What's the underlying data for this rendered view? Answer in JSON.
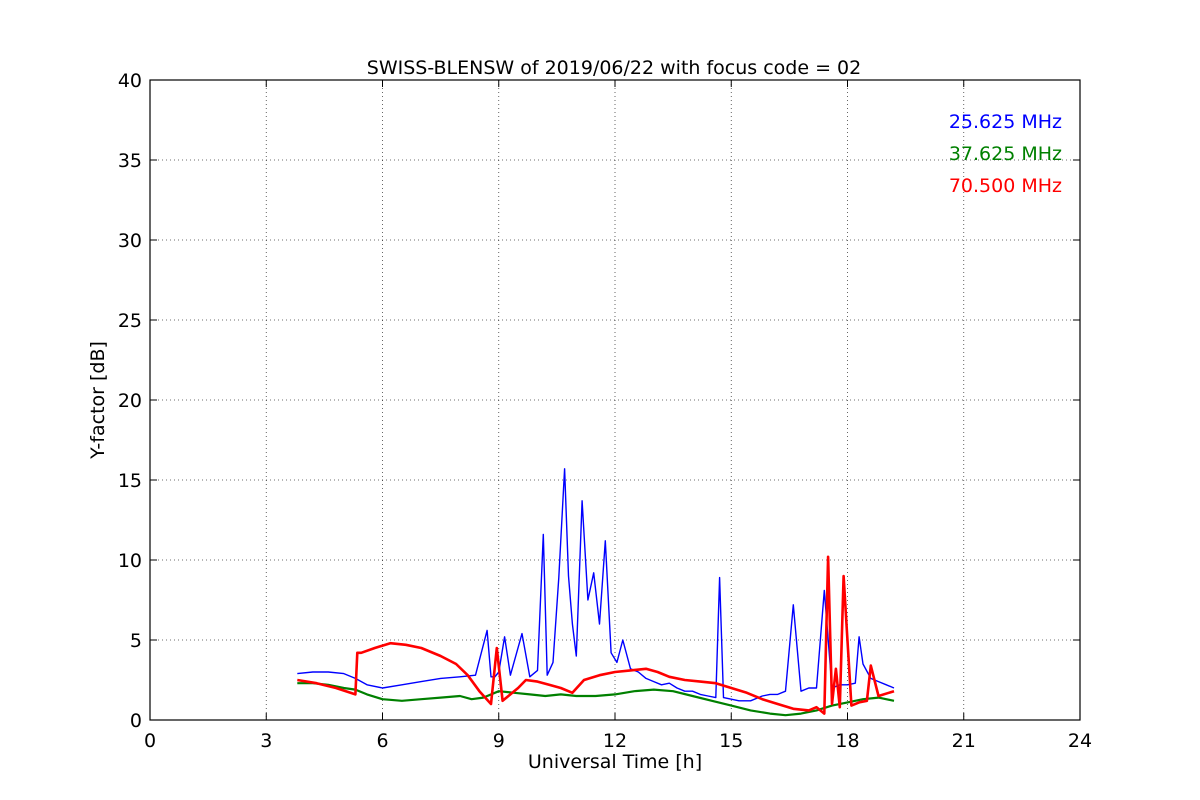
{
  "chart_data": {
    "type": "line",
    "title": "SWISS-BLENSW of 2019/06/22 with focus code = 02",
    "xlabel": "Universal Time [h]",
    "ylabel": "Y-factor [dB]",
    "xlim": [
      0,
      24
    ],
    "ylim": [
      0,
      40
    ],
    "xticks": [
      0,
      3,
      6,
      9,
      12,
      15,
      18,
      21,
      24
    ],
    "yticks": [
      0,
      5,
      10,
      15,
      20,
      25,
      30,
      35,
      40
    ],
    "grid": true,
    "legend_placement": "top-right",
    "series": [
      {
        "name": "25.625 MHz",
        "color": "#0000ff",
        "x": [
          3.8,
          4.2,
          4.6,
          5.0,
          5.3,
          5.6,
          6.0,
          6.5,
          7.0,
          7.5,
          8.0,
          8.4,
          8.7,
          8.8,
          8.9,
          9.0,
          9.15,
          9.3,
          9.6,
          9.8,
          10.0,
          10.15,
          10.25,
          10.4,
          10.55,
          10.7,
          10.8,
          10.9,
          11.0,
          11.15,
          11.3,
          11.45,
          11.6,
          11.75,
          11.9,
          12.05,
          12.2,
          12.4,
          12.6,
          12.8,
          13.0,
          13.2,
          13.4,
          13.6,
          13.8,
          14.0,
          14.2,
          14.4,
          14.6,
          14.7,
          14.8,
          15.0,
          15.2,
          15.5,
          15.8,
          16.0,
          16.2,
          16.4,
          16.6,
          16.8,
          17.0,
          17.2,
          17.4,
          17.6,
          17.8,
          18.0,
          18.2,
          18.3,
          18.4,
          18.6,
          18.8,
          19.0,
          19.2
        ],
        "values": [
          2.9,
          3.0,
          3.0,
          2.9,
          2.6,
          2.2,
          2.0,
          2.2,
          2.4,
          2.6,
          2.7,
          2.8,
          5.6,
          2.7,
          2.7,
          3.0,
          5.2,
          2.8,
          5.4,
          2.7,
          3.1,
          11.6,
          2.8,
          3.6,
          8.9,
          15.7,
          9.0,
          6.0,
          4.0,
          13.7,
          7.5,
          9.2,
          6.0,
          11.2,
          4.2,
          3.6,
          5.0,
          3.2,
          3.0,
          2.6,
          2.4,
          2.2,
          2.3,
          2.0,
          1.8,
          1.8,
          1.6,
          1.5,
          1.4,
          8.9,
          1.4,
          1.3,
          1.2,
          1.2,
          1.5,
          1.6,
          1.6,
          1.8,
          7.2,
          1.8,
          2.0,
          2.0,
          8.1,
          2.0,
          2.2,
          2.2,
          2.3,
          5.2,
          3.5,
          2.6,
          2.4,
          2.2,
          2.0
        ]
      },
      {
        "name": "37.625 MHz",
        "color": "#008000",
        "x": [
          3.8,
          4.2,
          4.6,
          5.0,
          5.3,
          5.6,
          6.0,
          6.5,
          7.0,
          7.5,
          8.0,
          8.3,
          8.6,
          9.0,
          9.4,
          9.8,
          10.2,
          10.6,
          11.0,
          11.5,
          12.0,
          12.5,
          13.0,
          13.5,
          14.0,
          14.5,
          15.0,
          15.5,
          16.0,
          16.4,
          16.8,
          17.2,
          17.6,
          18.0,
          18.4,
          18.8,
          19.2
        ],
        "values": [
          2.3,
          2.3,
          2.2,
          2.0,
          1.9,
          1.6,
          1.3,
          1.2,
          1.3,
          1.4,
          1.5,
          1.3,
          1.4,
          1.8,
          1.7,
          1.6,
          1.5,
          1.6,
          1.5,
          1.5,
          1.6,
          1.8,
          1.9,
          1.8,
          1.5,
          1.2,
          0.9,
          0.6,
          0.4,
          0.3,
          0.4,
          0.6,
          0.9,
          1.1,
          1.3,
          1.4,
          1.2
        ]
      },
      {
        "name": "70.500 MHz",
        "color": "#ff0000",
        "x": [
          3.8,
          4.3,
          4.8,
          5.3,
          5.35,
          5.45,
          5.8,
          6.2,
          6.6,
          7.0,
          7.5,
          7.9,
          8.2,
          8.5,
          8.8,
          8.95,
          9.1,
          9.25,
          9.5,
          9.7,
          10.0,
          10.3,
          10.6,
          10.9,
          11.2,
          11.6,
          12.0,
          12.4,
          12.8,
          13.1,
          13.4,
          13.8,
          14.2,
          14.6,
          15.0,
          15.4,
          15.8,
          16.2,
          16.6,
          17.0,
          17.2,
          17.4,
          17.5,
          17.6,
          17.7,
          17.8,
          17.9,
          18.1,
          18.3,
          18.5,
          18.6,
          18.8,
          19.2
        ],
        "values": [
          2.5,
          2.3,
          2.0,
          1.6,
          4.2,
          4.2,
          4.5,
          4.8,
          4.7,
          4.5,
          4.0,
          3.5,
          2.8,
          1.8,
          1.0,
          4.5,
          1.2,
          1.5,
          2.0,
          2.5,
          2.4,
          2.2,
          2.0,
          1.7,
          2.5,
          2.8,
          3.0,
          3.1,
          3.2,
          3.0,
          2.7,
          2.5,
          2.4,
          2.3,
          2.0,
          1.7,
          1.3,
          1.0,
          0.7,
          0.6,
          0.8,
          0.4,
          10.2,
          1.0,
          3.2,
          0.8,
          9.0,
          0.9,
          1.1,
          1.2,
          3.4,
          1.5,
          1.8
        ]
      }
    ]
  }
}
